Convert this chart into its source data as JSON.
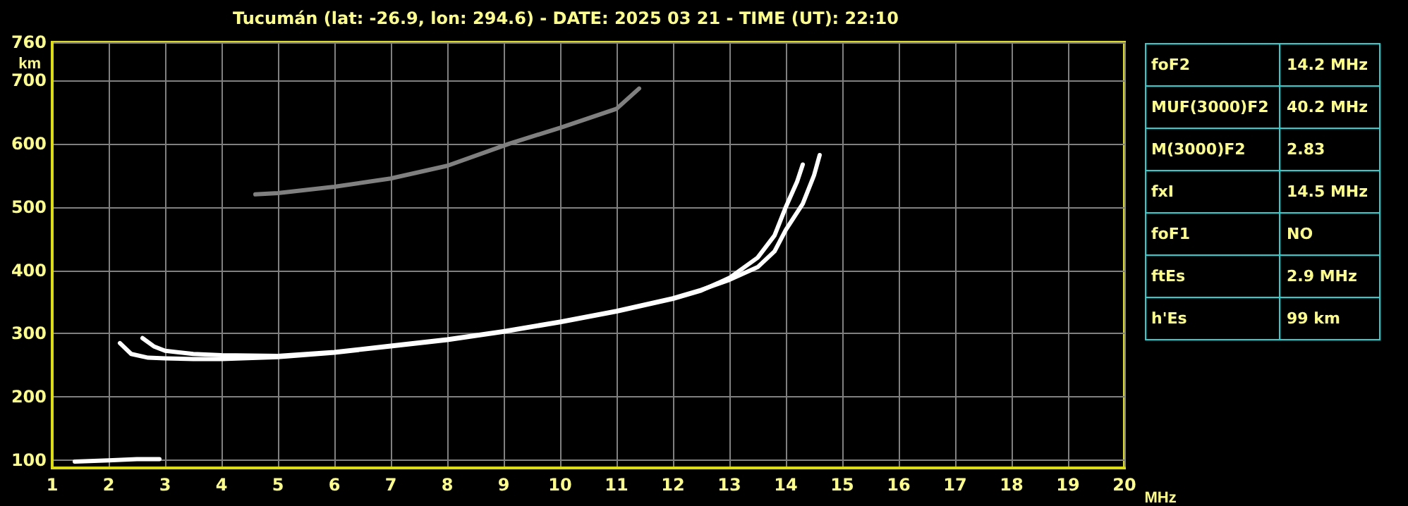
{
  "chart_data": {
    "type": "line",
    "title": "Tucumán (lat: -26.9, lon: 294.6) - DATE: 2025 03 21 - TIME (UT): 22:10",
    "xlabel": "MHz",
    "ylabel": "km",
    "xlim": [
      1,
      20
    ],
    "xticks": [
      1,
      2,
      3,
      4,
      5,
      6,
      7,
      8,
      9,
      10,
      11,
      12,
      13,
      14,
      15,
      16,
      17,
      18,
      19,
      20
    ],
    "ylim": [
      88,
      760
    ],
    "yticks": [
      100,
      200,
      300,
      400,
      500,
      600,
      700,
      760
    ],
    "grid": true,
    "marker": "none",
    "line_style": "solid",
    "series": [
      {
        "color": "#ffffff",
        "x": [
          2.2,
          2.4,
          2.7,
          3,
          3.5,
          4,
          5,
          6,
          7,
          8,
          9,
          10,
          11,
          12,
          12.5,
          13,
          13.5,
          13.8,
          14,
          14.2,
          14.3
        ],
        "values": [
          285,
          268,
          262,
          261,
          260,
          260,
          263,
          270,
          280,
          290,
          303,
          318,
          335,
          355,
          368,
          388,
          420,
          455,
          500,
          540,
          567
        ]
      },
      {
        "color": "#ffffff",
        "x": [
          2.6,
          2.8,
          3,
          3.5,
          4,
          5,
          6,
          7,
          8,
          9,
          10,
          11,
          12,
          12.5,
          13,
          13.5,
          13.8,
          14,
          14.3,
          14.5,
          14.6
        ],
        "values": [
          293,
          280,
          273,
          268,
          266,
          265,
          271,
          281,
          291,
          304,
          319,
          336,
          356,
          369,
          385,
          405,
          430,
          464,
          505,
          550,
          582
        ]
      },
      {
        "color": "#ffffff",
        "x": [
          1.4,
          2,
          2.5,
          2.9
        ],
        "values": [
          98,
          100,
          102,
          102
        ]
      },
      {
        "color": "#808080",
        "x": [
          4.6,
          5,
          6,
          7,
          8,
          9.1,
          10,
          11,
          11.4
        ],
        "values": [
          520,
          522,
          532,
          545,
          565,
          600,
          625,
          655,
          687
        ]
      }
    ],
    "annotations": [
      "foF2",
      "14.2 MHz",
      "MUF(3000)F2",
      "40.2 MHz",
      "M(3000)F2",
      "2.83",
      "fxI",
      "14.5 MHz",
      "foF1",
      "NO",
      "ftEs",
      "2.9 MHz",
      "h'Es",
      "99 km"
    ]
  }
}
